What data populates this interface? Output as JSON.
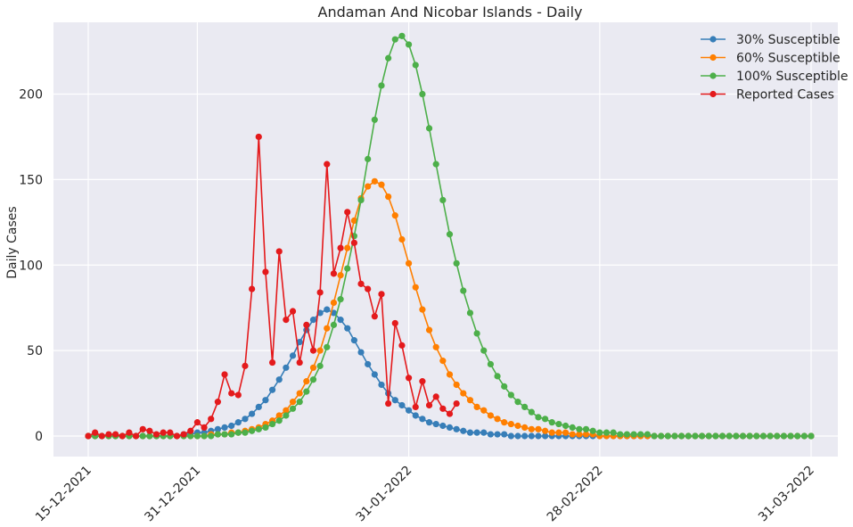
{
  "chart_data": {
    "type": "line",
    "title": "Andaman And Nicobar Islands - Daily",
    "xlabel": "",
    "ylabel": "Daily Cases",
    "x_start": "2021-12-15",
    "x_end": "2022-03-31",
    "x_ticks": [
      "15-12-2021",
      "31-12-2021",
      "31-01-2022",
      "28-02-2022",
      "31-03-2022"
    ],
    "y_ticks": [
      0,
      50,
      100,
      150,
      200
    ],
    "ylim": [
      -12,
      242
    ],
    "grid": true,
    "legend_position": "top-right",
    "series": [
      {
        "name": "30% Susceptible",
        "color": "#377eb8",
        "values": [
          0,
          0,
          0,
          0,
          0,
          0,
          0,
          0,
          0,
          0,
          0,
          0,
          0,
          0,
          1,
          1,
          2,
          2,
          3,
          4,
          5,
          6,
          8,
          10,
          13,
          17,
          21,
          27,
          33,
          40,
          47,
          55,
          62,
          68,
          72,
          74,
          72,
          68,
          63,
          56,
          49,
          42,
          36,
          30,
          25,
          21,
          18,
          15,
          12,
          10,
          8,
          7,
          6,
          5,
          4,
          3,
          2,
          2,
          2,
          1,
          1,
          1,
          0,
          0,
          0,
          0,
          0,
          0,
          0,
          0,
          0,
          0,
          0,
          0,
          0,
          0,
          0,
          0,
          0,
          0,
          0,
          0,
          0,
          0,
          0,
          0,
          0,
          0,
          0,
          0,
          0,
          0,
          0,
          0,
          0,
          0,
          0,
          0,
          0,
          0,
          0,
          0,
          0,
          0,
          0,
          0,
          0
        ]
      },
      {
        "name": "60% Susceptible",
        "color": "#ff7f00",
        "values": [
          0,
          0,
          0,
          0,
          0,
          0,
          0,
          0,
          0,
          0,
          0,
          0,
          0,
          0,
          0,
          0,
          0,
          0,
          1,
          1,
          1,
          2,
          2,
          3,
          4,
          5,
          7,
          9,
          12,
          15,
          20,
          25,
          32,
          40,
          50,
          63,
          78,
          94,
          110,
          126,
          139,
          146,
          149,
          147,
          140,
          129,
          115,
          101,
          87,
          74,
          62,
          52,
          44,
          36,
          30,
          25,
          21,
          17,
          15,
          12,
          10,
          8,
          7,
          6,
          5,
          4,
          4,
          3,
          2,
          2,
          2,
          1,
          1,
          1,
          1,
          0,
          0,
          0,
          0,
          0,
          0,
          0,
          0,
          0,
          0,
          0,
          0,
          0,
          0,
          0,
          0,
          0,
          0,
          0,
          0,
          0,
          0,
          0,
          0,
          0,
          0,
          0,
          0,
          0,
          0,
          0,
          0
        ]
      },
      {
        "name": "100% Susceptible",
        "color": "#4daf4a",
        "values": [
          0,
          0,
          0,
          0,
          0,
          0,
          0,
          0,
          0,
          0,
          0,
          0,
          0,
          0,
          0,
          0,
          0,
          0,
          0,
          1,
          1,
          1,
          2,
          2,
          3,
          4,
          5,
          7,
          9,
          12,
          16,
          20,
          26,
          33,
          41,
          52,
          65,
          80,
          98,
          117,
          138,
          162,
          185,
          205,
          221,
          232,
          234,
          229,
          217,
          200,
          180,
          159,
          138,
          118,
          101,
          85,
          72,
          60,
          50,
          42,
          35,
          29,
          24,
          20,
          17,
          14,
          11,
          10,
          8,
          7,
          6,
          5,
          4,
          4,
          3,
          2,
          2,
          2,
          1,
          1,
          1,
          1,
          1,
          0,
          0,
          0,
          0,
          0,
          0,
          0,
          0,
          0,
          0,
          0,
          0,
          0,
          0,
          0,
          0,
          0,
          0,
          0,
          0,
          0,
          0,
          0,
          0
        ]
      },
      {
        "name": "Reported Cases",
        "color": "#e41a1c",
        "values": [
          0,
          2,
          0,
          1,
          1,
          0,
          2,
          0,
          4,
          3,
          1,
          2,
          2,
          0,
          1,
          3,
          8,
          5,
          10,
          20,
          36,
          25,
          24,
          41,
          86,
          175,
          96,
          43,
          108,
          68,
          73,
          43,
          65,
          50,
          84,
          159,
          95,
          110,
          131,
          113,
          89,
          86,
          70,
          83,
          19,
          66,
          53,
          34,
          17,
          32,
          18,
          23,
          16,
          13,
          19
        ]
      }
    ]
  }
}
